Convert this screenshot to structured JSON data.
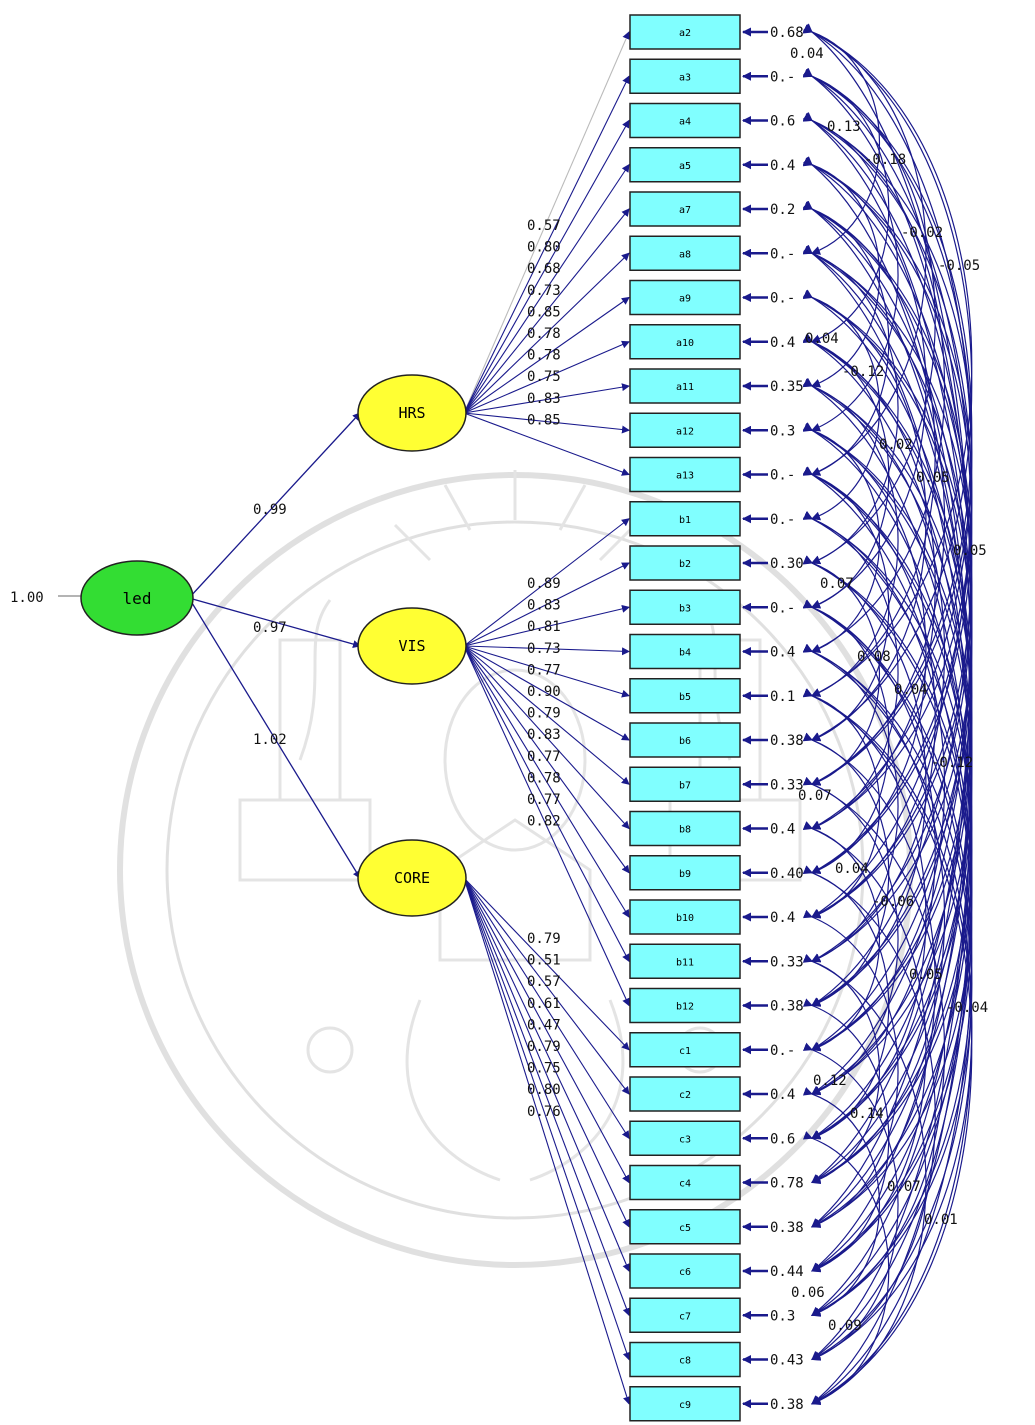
{
  "diagram": {
    "global_latent": {
      "label": "led",
      "variance": "1.00",
      "color": "#33dd33"
    },
    "latents": [
      {
        "label": "HRS",
        "loading": "0.99",
        "color": "#ffff33"
      },
      {
        "label": "VIS",
        "loading": "0.97",
        "color": "#ffff33"
      },
      {
        "label": "CORE",
        "loading": "1.02",
        "color": "#ffff33"
      }
    ],
    "indicators": [
      {
        "label": "a2",
        "group": 0,
        "loading": "",
        "error": "0.68"
      },
      {
        "label": "a3",
        "group": 0,
        "loading": "0.57",
        "error": "0.-"
      },
      {
        "label": "a4",
        "group": 0,
        "loading": "0.80",
        "error": "0.6"
      },
      {
        "label": "a5",
        "group": 0,
        "loading": "0.68",
        "error": "0.4"
      },
      {
        "label": "a7",
        "group": 0,
        "loading": "0.73",
        "error": "0.2"
      },
      {
        "label": "a8",
        "group": 0,
        "loading": "0.85",
        "error": "0.-"
      },
      {
        "label": "a9",
        "group": 0,
        "loading": "0.78",
        "error": "0.-"
      },
      {
        "label": "a10",
        "group": 0,
        "loading": "0.78",
        "error": "0.4"
      },
      {
        "label": "a11",
        "group": 0,
        "loading": "0.75",
        "error": "0.35"
      },
      {
        "label": "a12",
        "group": 0,
        "loading": "0.83",
        "error": "0.3"
      },
      {
        "label": "a13",
        "group": 0,
        "loading": "0.85",
        "error": "0.-"
      },
      {
        "label": "b1",
        "group": 1,
        "loading": "0.89",
        "error": "0.-"
      },
      {
        "label": "b2",
        "group": 1,
        "loading": "0.83",
        "error": "0.30"
      },
      {
        "label": "b3",
        "group": 1,
        "loading": "0.81",
        "error": "0.-"
      },
      {
        "label": "b4",
        "group": 1,
        "loading": "0.73",
        "error": "0.4"
      },
      {
        "label": "b5",
        "group": 1,
        "loading": "0.77",
        "error": "0.1"
      },
      {
        "label": "b6",
        "group": 1,
        "loading": "0.90",
        "error": "0.38"
      },
      {
        "label": "b7",
        "group": 1,
        "loading": "0.79",
        "error": "0.33"
      },
      {
        "label": "b8",
        "group": 1,
        "loading": "0.83",
        "error": "0.4"
      },
      {
        "label": "b9",
        "group": 1,
        "loading": "0.77",
        "error": "0.40"
      },
      {
        "label": "b10",
        "group": 1,
        "loading": "0.78",
        "error": "0.4"
      },
      {
        "label": "b11",
        "group": 1,
        "loading": "0.77",
        "error": "0.33"
      },
      {
        "label": "b12",
        "group": 1,
        "loading": "0.82",
        "error": "0.38"
      },
      {
        "label": "c1",
        "group": 2,
        "loading": "0.79",
        "error": "0.-"
      },
      {
        "label": "c2",
        "group": 2,
        "loading": "0.51",
        "error": "0.4"
      },
      {
        "label": "c3",
        "group": 2,
        "loading": "0.57",
        "error": "0.6"
      },
      {
        "label": "c4",
        "group": 2,
        "loading": "0.61",
        "error": "0.78"
      },
      {
        "label": "c5",
        "group": 2,
        "loading": "0.47",
        "error": "0.38"
      },
      {
        "label": "c6",
        "group": 2,
        "loading": "0.79",
        "error": "0.44"
      },
      {
        "label": "c7",
        "group": 2,
        "loading": "0.75",
        "error": "0.3"
      },
      {
        "label": "c8",
        "group": 2,
        "loading": "0.80",
        "error": "0.43"
      },
      {
        "label": "c9",
        "group": 2,
        "loading": "0.76",
        "error": "0.38"
      }
    ],
    "covariance_labels": [
      "0.04",
      "0.13",
      "-0.18",
      "-0.02",
      "-0.05",
      "0.04",
      "-0.12",
      "0.02",
      "0.05",
      "0.05",
      "0.07",
      "0.08",
      "0.04",
      "-0.12",
      "0.07",
      "0.04",
      "-0.06",
      "0.05",
      "-0.04",
      "0.12",
      "0.14",
      "0.07",
      "0.01",
      "0.06",
      "0.09"
    ],
    "colors": {
      "indicator_fill": "#80ffff",
      "path_color": "#1a1a8c",
      "error_color": "#1a1a8c",
      "watermark": "#c8c8c8"
    }
  }
}
